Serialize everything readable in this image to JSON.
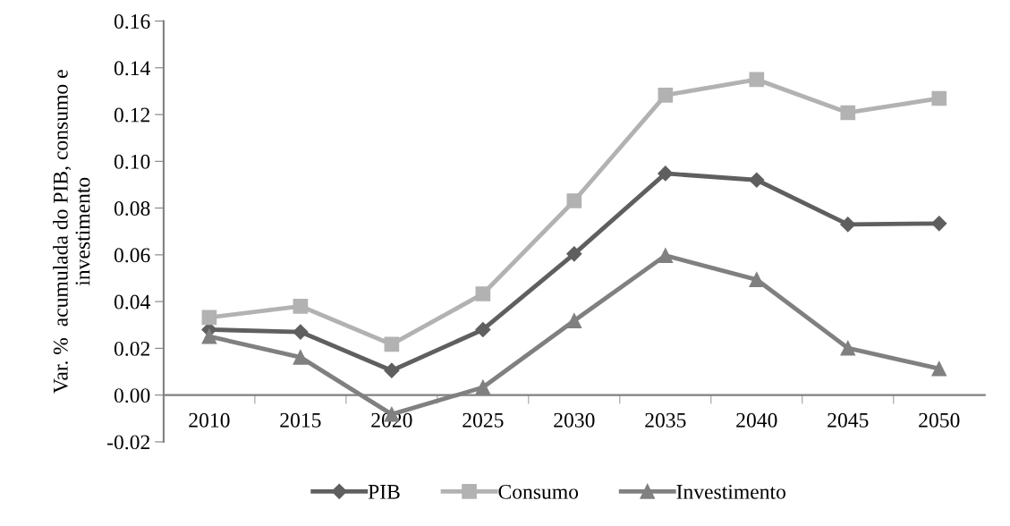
{
  "chart_data": {
    "type": "line",
    "ylabel": "Var. %  acumulada do PIB, consumo e\ninvestimento",
    "categories": [
      "2010",
      "2015",
      "2020",
      "2025",
      "2030",
      "2035",
      "2040",
      "2045",
      "2050"
    ],
    "series": [
      {
        "name": "PIB",
        "color": "#5f5f5f",
        "marker": "diamond",
        "values": [
          0.028,
          0.027,
          0.0105,
          0.028,
          0.0604,
          0.0948,
          0.092,
          0.073,
          0.0734
        ]
      },
      {
        "name": "Consumo",
        "color": "#b2b2b2",
        "marker": "square",
        "values": [
          0.0332,
          0.038,
          0.0217,
          0.0433,
          0.0831,
          0.1283,
          0.135,
          0.1208,
          0.1269
        ]
      },
      {
        "name": "Investimento",
        "color": "#808080",
        "marker": "triangle",
        "values": [
          0.0251,
          0.0162,
          -0.0082,
          0.0033,
          0.0318,
          0.0597,
          0.0494,
          0.0201,
          0.0113
        ]
      }
    ],
    "ylim": [
      -0.02,
      0.16
    ],
    "yticks": [
      -0.02,
      {
        "value": 0,
        "label": "0.00"
      },
      0.02,
      0.04,
      0.06,
      0.08,
      {
        "value": 0.1,
        "label": "0.10"
      },
      0.12,
      0.14,
      0.16
    ],
    "grid": false,
    "legend": "bottom",
    "line_style": "solid"
  }
}
